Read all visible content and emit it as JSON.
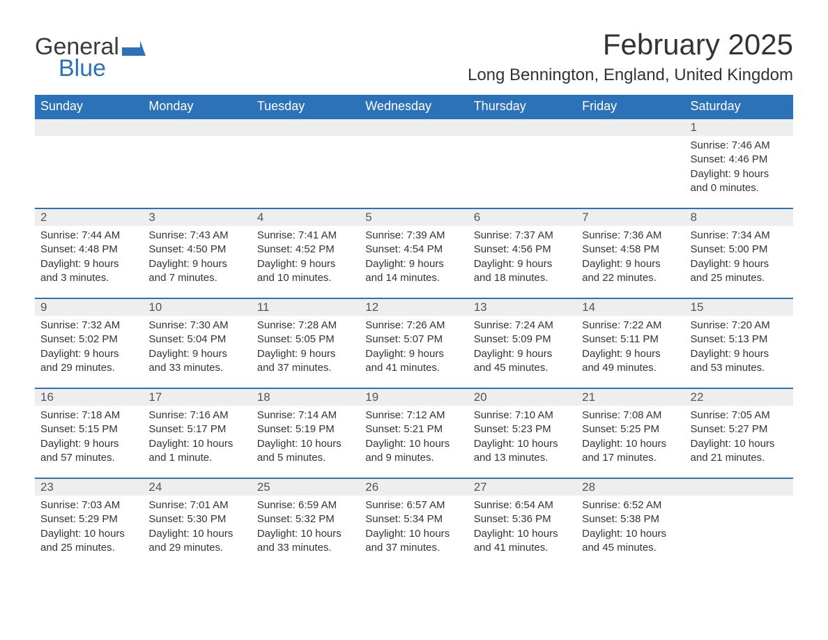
{
  "logo": {
    "word1": "General",
    "word2": "Blue",
    "flag_color": "#2b72b8",
    "text_color1": "#3b3b3b"
  },
  "title": "February 2025",
  "location": "Long Bennington, England, United Kingdom",
  "colors": {
    "header_bg": "#2b72b8",
    "header_text": "#ffffff",
    "daynum_bg": "#eeeeee",
    "daynum_border": "#2b72b8",
    "body_text": "#333333",
    "page_bg": "#ffffff"
  },
  "typography": {
    "title_fontsize": 42,
    "location_fontsize": 24,
    "header_fontsize": 18,
    "daynum_fontsize": 17,
    "detail_fontsize": 15
  },
  "daynames": [
    "Sunday",
    "Monday",
    "Tuesday",
    "Wednesday",
    "Thursday",
    "Friday",
    "Saturday"
  ],
  "weeks": [
    [
      null,
      null,
      null,
      null,
      null,
      null,
      {
        "d": "1",
        "lines": [
          "Sunrise: 7:46 AM",
          "Sunset: 4:46 PM",
          "Daylight: 9 hours and 0 minutes."
        ]
      }
    ],
    [
      {
        "d": "2",
        "lines": [
          "Sunrise: 7:44 AM",
          "Sunset: 4:48 PM",
          "Daylight: 9 hours and 3 minutes."
        ]
      },
      {
        "d": "3",
        "lines": [
          "Sunrise: 7:43 AM",
          "Sunset: 4:50 PM",
          "Daylight: 9 hours and 7 minutes."
        ]
      },
      {
        "d": "4",
        "lines": [
          "Sunrise: 7:41 AM",
          "Sunset: 4:52 PM",
          "Daylight: 9 hours and 10 minutes."
        ]
      },
      {
        "d": "5",
        "lines": [
          "Sunrise: 7:39 AM",
          "Sunset: 4:54 PM",
          "Daylight: 9 hours and 14 minutes."
        ]
      },
      {
        "d": "6",
        "lines": [
          "Sunrise: 7:37 AM",
          "Sunset: 4:56 PM",
          "Daylight: 9 hours and 18 minutes."
        ]
      },
      {
        "d": "7",
        "lines": [
          "Sunrise: 7:36 AM",
          "Sunset: 4:58 PM",
          "Daylight: 9 hours and 22 minutes."
        ]
      },
      {
        "d": "8",
        "lines": [
          "Sunrise: 7:34 AM",
          "Sunset: 5:00 PM",
          "Daylight: 9 hours and 25 minutes."
        ]
      }
    ],
    [
      {
        "d": "9",
        "lines": [
          "Sunrise: 7:32 AM",
          "Sunset: 5:02 PM",
          "Daylight: 9 hours and 29 minutes."
        ]
      },
      {
        "d": "10",
        "lines": [
          "Sunrise: 7:30 AM",
          "Sunset: 5:04 PM",
          "Daylight: 9 hours and 33 minutes."
        ]
      },
      {
        "d": "11",
        "lines": [
          "Sunrise: 7:28 AM",
          "Sunset: 5:05 PM",
          "Daylight: 9 hours and 37 minutes."
        ]
      },
      {
        "d": "12",
        "lines": [
          "Sunrise: 7:26 AM",
          "Sunset: 5:07 PM",
          "Daylight: 9 hours and 41 minutes."
        ]
      },
      {
        "d": "13",
        "lines": [
          "Sunrise: 7:24 AM",
          "Sunset: 5:09 PM",
          "Daylight: 9 hours and 45 minutes."
        ]
      },
      {
        "d": "14",
        "lines": [
          "Sunrise: 7:22 AM",
          "Sunset: 5:11 PM",
          "Daylight: 9 hours and 49 minutes."
        ]
      },
      {
        "d": "15",
        "lines": [
          "Sunrise: 7:20 AM",
          "Sunset: 5:13 PM",
          "Daylight: 9 hours and 53 minutes."
        ]
      }
    ],
    [
      {
        "d": "16",
        "lines": [
          "Sunrise: 7:18 AM",
          "Sunset: 5:15 PM",
          "Daylight: 9 hours and 57 minutes."
        ]
      },
      {
        "d": "17",
        "lines": [
          "Sunrise: 7:16 AM",
          "Sunset: 5:17 PM",
          "Daylight: 10 hours and 1 minute."
        ]
      },
      {
        "d": "18",
        "lines": [
          "Sunrise: 7:14 AM",
          "Sunset: 5:19 PM",
          "Daylight: 10 hours and 5 minutes."
        ]
      },
      {
        "d": "19",
        "lines": [
          "Sunrise: 7:12 AM",
          "Sunset: 5:21 PM",
          "Daylight: 10 hours and 9 minutes."
        ]
      },
      {
        "d": "20",
        "lines": [
          "Sunrise: 7:10 AM",
          "Sunset: 5:23 PM",
          "Daylight: 10 hours and 13 minutes."
        ]
      },
      {
        "d": "21",
        "lines": [
          "Sunrise: 7:08 AM",
          "Sunset: 5:25 PM",
          "Daylight: 10 hours and 17 minutes."
        ]
      },
      {
        "d": "22",
        "lines": [
          "Sunrise: 7:05 AM",
          "Sunset: 5:27 PM",
          "Daylight: 10 hours and 21 minutes."
        ]
      }
    ],
    [
      {
        "d": "23",
        "lines": [
          "Sunrise: 7:03 AM",
          "Sunset: 5:29 PM",
          "Daylight: 10 hours and 25 minutes."
        ]
      },
      {
        "d": "24",
        "lines": [
          "Sunrise: 7:01 AM",
          "Sunset: 5:30 PM",
          "Daylight: 10 hours and 29 minutes."
        ]
      },
      {
        "d": "25",
        "lines": [
          "Sunrise: 6:59 AM",
          "Sunset: 5:32 PM",
          "Daylight: 10 hours and 33 minutes."
        ]
      },
      {
        "d": "26",
        "lines": [
          "Sunrise: 6:57 AM",
          "Sunset: 5:34 PM",
          "Daylight: 10 hours and 37 minutes."
        ]
      },
      {
        "d": "27",
        "lines": [
          "Sunrise: 6:54 AM",
          "Sunset: 5:36 PM",
          "Daylight: 10 hours and 41 minutes."
        ]
      },
      {
        "d": "28",
        "lines": [
          "Sunrise: 6:52 AM",
          "Sunset: 5:38 PM",
          "Daylight: 10 hours and 45 minutes."
        ]
      },
      null
    ]
  ]
}
